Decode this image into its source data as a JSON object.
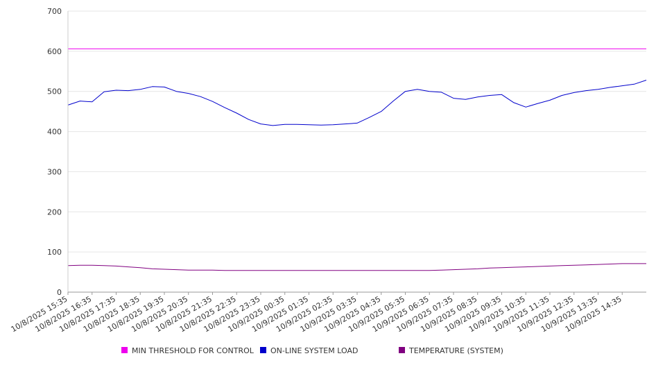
{
  "chart_data": {
    "type": "line",
    "title": "",
    "xlabel": "",
    "ylabel": "",
    "ylim": [
      0,
      700
    ],
    "yticks": [
      0,
      100,
      200,
      300,
      400,
      500,
      600,
      700
    ],
    "grid": true,
    "legend_position": "bottom",
    "x_tick_labels": [
      "10/8/2025 15:35",
      "10/8/2025 16:35",
      "10/8/2025 17:35",
      "10/8/2025 18:35",
      "10/8/2025 19:35",
      "10/8/2025 20:35",
      "10/8/2025 21:35",
      "10/8/2025 22:35",
      "10/8/2025 23:35",
      "10/9/2025 00:35",
      "10/9/2025 01:35",
      "10/9/2025 02:35",
      "10/9/2025 03:35",
      "10/9/2025 04:35",
      "10/9/2025 05:35",
      "10/9/2025 06:35",
      "10/9/2025 07:35",
      "10/9/2025 08:35",
      "10/9/2025 09:35",
      "10/9/2025 10:35",
      "10/9/2025 11:35",
      "10/9/2025 12:35",
      "10/9/2025 13:35",
      "10/9/2025 14:35"
    ],
    "x": [
      0,
      0.5,
      1,
      1.5,
      2,
      2.5,
      3,
      3.5,
      4,
      4.5,
      5,
      5.5,
      6,
      6.5,
      7,
      7.5,
      8,
      8.5,
      9,
      9.5,
      10,
      10.5,
      11,
      11.5,
      12,
      12.5,
      13,
      13.5,
      14,
      14.5,
      15,
      15.5,
      16,
      16.5,
      17,
      17.5,
      18,
      18.5,
      19,
      19.5,
      20,
      20.5,
      21,
      21.5,
      22,
      22.5,
      23,
      23.5,
      24
    ],
    "series": [
      {
        "name": "MIN THRESHOLD FOR CONTROL",
        "color": "#ee00ee",
        "values": [
          606,
          606,
          606,
          606,
          606,
          606,
          606,
          606,
          606,
          606,
          606,
          606,
          606,
          606,
          606,
          606,
          606,
          606,
          606,
          606,
          606,
          606,
          606,
          606,
          606,
          606,
          606,
          606,
          606,
          606,
          606,
          606,
          606,
          606,
          606,
          606,
          606,
          606,
          606,
          606,
          606,
          606,
          606,
          606,
          606,
          606,
          606,
          606,
          606
        ]
      },
      {
        "name": "ON-LINE SYSTEM LOAD",
        "color": "#0000cc",
        "values": [
          466,
          476,
          474,
          499,
          503,
          502,
          505,
          512,
          511,
          500,
          495,
          487,
          475,
          460,
          446,
          430,
          419,
          415,
          418,
          418,
          417,
          416,
          417,
          419,
          421,
          435,
          450,
          476,
          500,
          505,
          500,
          498,
          483,
          480,
          486,
          490,
          492,
          472,
          461,
          470,
          478,
          490,
          497,
          502,
          505,
          510,
          514,
          518,
          528
        ]
      },
      {
        "name": "TEMPERATURE (SYSTEM)",
        "color": "#800080",
        "values": [
          66,
          67,
          67,
          66,
          65,
          63,
          61,
          58,
          57,
          56,
          55,
          55,
          55,
          54,
          54,
          54,
          54,
          54,
          54,
          54,
          54,
          54,
          54,
          54,
          54,
          54,
          54,
          54,
          54,
          54,
          54,
          55,
          56,
          57,
          58,
          60,
          61,
          62,
          63,
          64,
          65,
          66,
          67,
          68,
          69,
          70,
          71,
          71,
          71
        ]
      }
    ]
  }
}
